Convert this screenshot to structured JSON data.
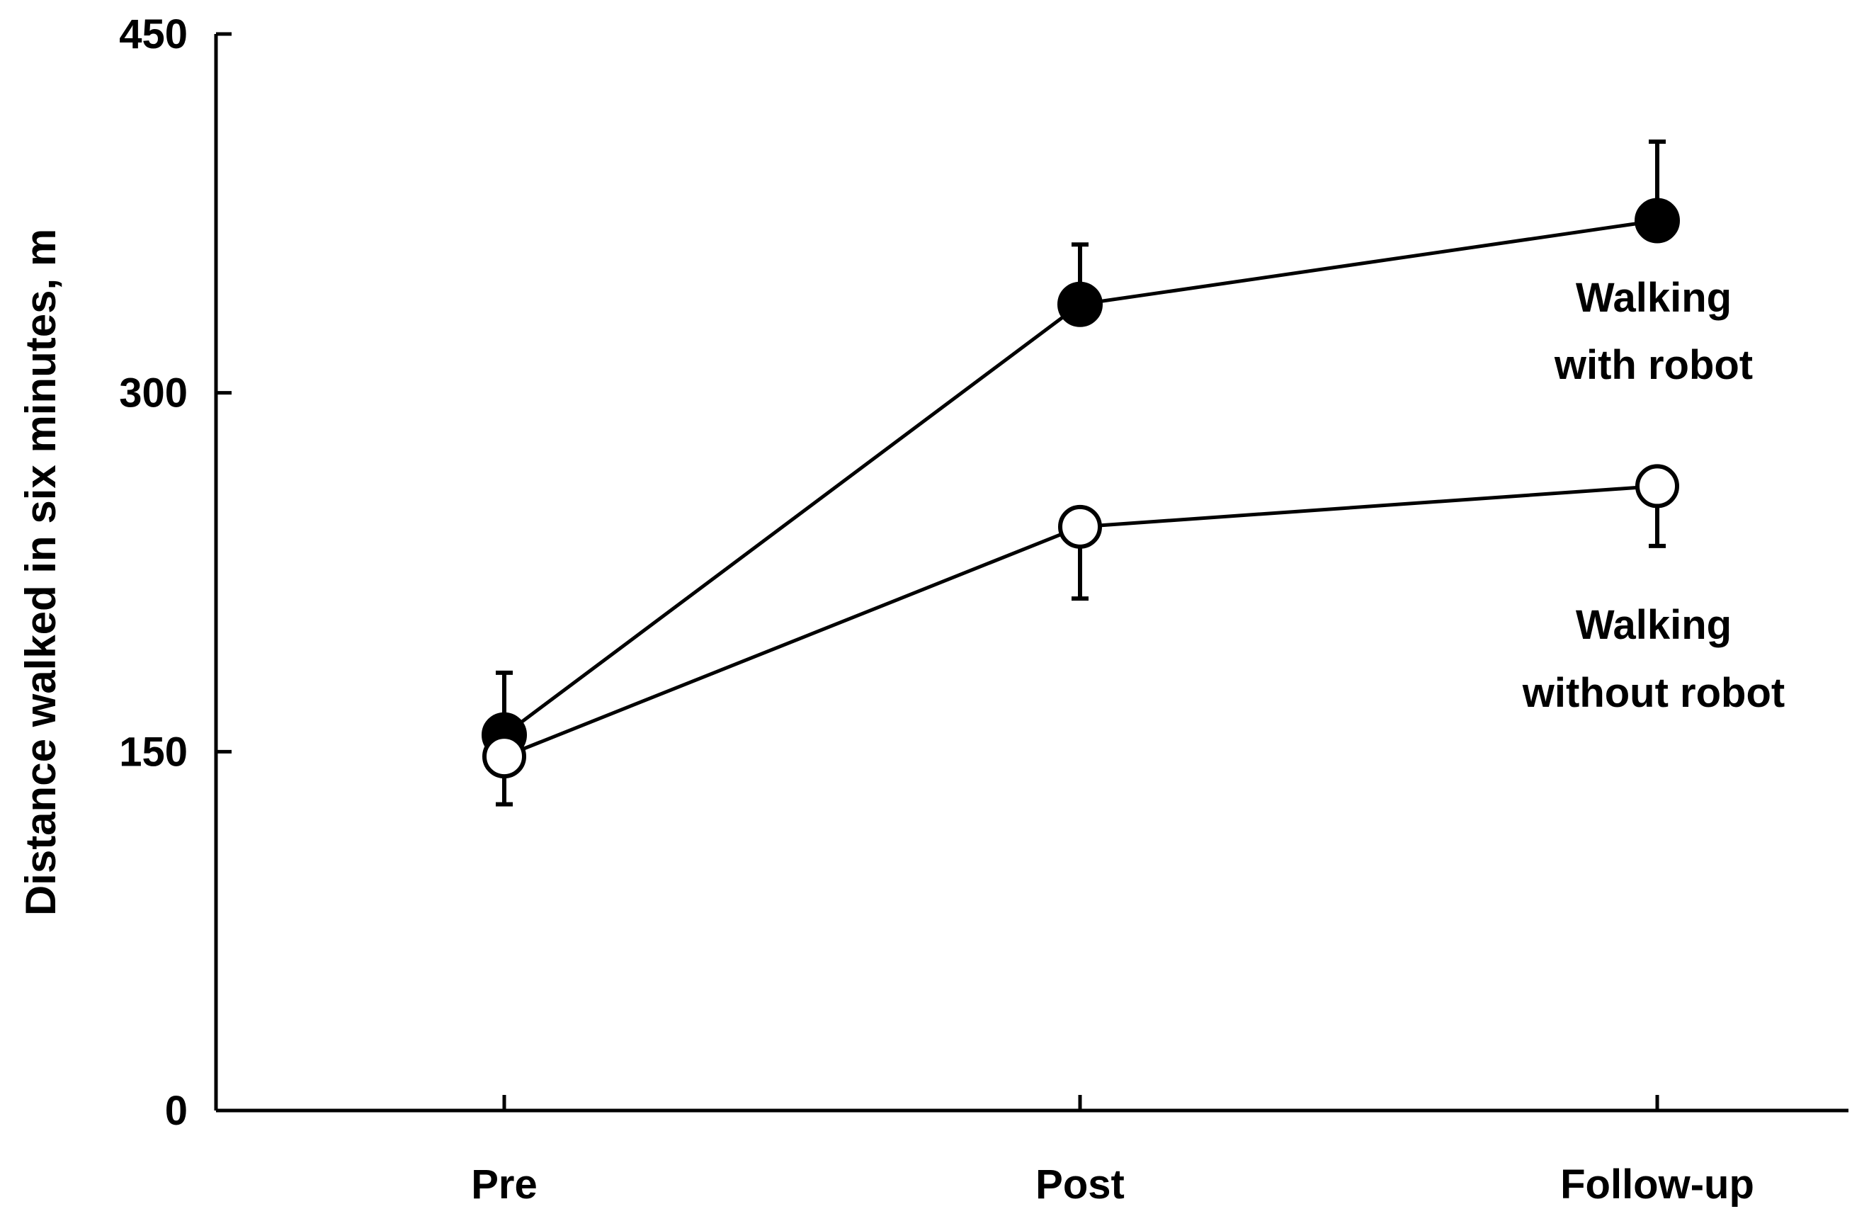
{
  "chart_data": {
    "type": "line",
    "title": "",
    "xlabel": "",
    "ylabel": "Distance walked in six minutes, m",
    "categories": [
      "Pre",
      "Post",
      "Follow-up"
    ],
    "ylim": [
      0,
      450
    ],
    "yticks": [
      0,
      150,
      300,
      450
    ],
    "grid": false,
    "legend": "none",
    "series": [
      {
        "name": "Walking with robot",
        "label_lines": [
          "Walking",
          "with robot"
        ],
        "values": [
          157,
          337,
          372
        ],
        "error_up": [
          26,
          25,
          33
        ],
        "marker": "filled-circle",
        "color": "#000000"
      },
      {
        "name": "Walking without robot",
        "label_lines": [
          "Walking",
          "without robot"
        ],
        "values": [
          148,
          244,
          261
        ],
        "error_up": [
          0,
          0,
          0
        ],
        "error_down": [
          20,
          30,
          25
        ],
        "marker": "open-circle",
        "color": "#000000"
      }
    ]
  }
}
